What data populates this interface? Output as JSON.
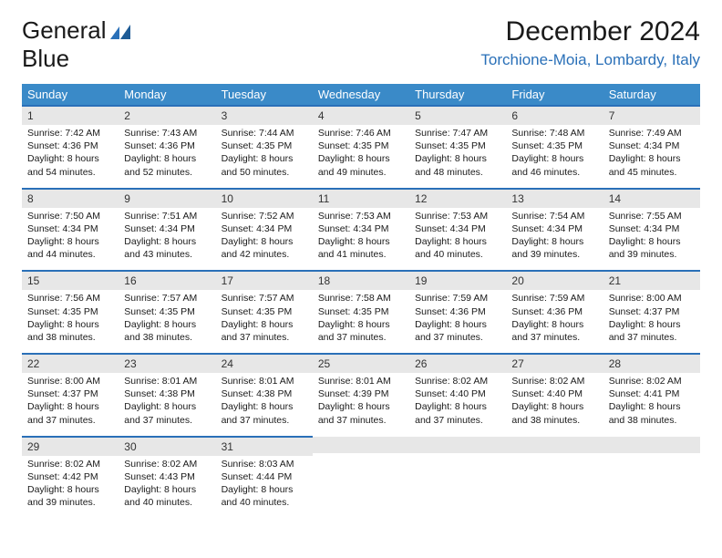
{
  "logo": {
    "text1": "General",
    "text2": "Blue"
  },
  "title": "December 2024",
  "location": "Torchione-Moia, Lombardy, Italy",
  "colors": {
    "header_bg": "#3a8ac8",
    "header_text": "#ffffff",
    "row_border": "#2a70b8",
    "daynum_bg": "#e7e7e7",
    "accent": "#2a70b8",
    "logo_gray": "#6b6b6b"
  },
  "day_headers": [
    "Sunday",
    "Monday",
    "Tuesday",
    "Wednesday",
    "Thursday",
    "Friday",
    "Saturday"
  ],
  "weeks": [
    [
      {
        "n": "1",
        "sunrise": "7:42 AM",
        "sunset": "4:36 PM",
        "daylight": "8 hours and 54 minutes."
      },
      {
        "n": "2",
        "sunrise": "7:43 AM",
        "sunset": "4:36 PM",
        "daylight": "8 hours and 52 minutes."
      },
      {
        "n": "3",
        "sunrise": "7:44 AM",
        "sunset": "4:35 PM",
        "daylight": "8 hours and 50 minutes."
      },
      {
        "n": "4",
        "sunrise": "7:46 AM",
        "sunset": "4:35 PM",
        "daylight": "8 hours and 49 minutes."
      },
      {
        "n": "5",
        "sunrise": "7:47 AM",
        "sunset": "4:35 PM",
        "daylight": "8 hours and 48 minutes."
      },
      {
        "n": "6",
        "sunrise": "7:48 AM",
        "sunset": "4:35 PM",
        "daylight": "8 hours and 46 minutes."
      },
      {
        "n": "7",
        "sunrise": "7:49 AM",
        "sunset": "4:34 PM",
        "daylight": "8 hours and 45 minutes."
      }
    ],
    [
      {
        "n": "8",
        "sunrise": "7:50 AM",
        "sunset": "4:34 PM",
        "daylight": "8 hours and 44 minutes."
      },
      {
        "n": "9",
        "sunrise": "7:51 AM",
        "sunset": "4:34 PM",
        "daylight": "8 hours and 43 minutes."
      },
      {
        "n": "10",
        "sunrise": "7:52 AM",
        "sunset": "4:34 PM",
        "daylight": "8 hours and 42 minutes."
      },
      {
        "n": "11",
        "sunrise": "7:53 AM",
        "sunset": "4:34 PM",
        "daylight": "8 hours and 41 minutes."
      },
      {
        "n": "12",
        "sunrise": "7:53 AM",
        "sunset": "4:34 PM",
        "daylight": "8 hours and 40 minutes."
      },
      {
        "n": "13",
        "sunrise": "7:54 AM",
        "sunset": "4:34 PM",
        "daylight": "8 hours and 39 minutes."
      },
      {
        "n": "14",
        "sunrise": "7:55 AM",
        "sunset": "4:34 PM",
        "daylight": "8 hours and 39 minutes."
      }
    ],
    [
      {
        "n": "15",
        "sunrise": "7:56 AM",
        "sunset": "4:35 PM",
        "daylight": "8 hours and 38 minutes."
      },
      {
        "n": "16",
        "sunrise": "7:57 AM",
        "sunset": "4:35 PM",
        "daylight": "8 hours and 38 minutes."
      },
      {
        "n": "17",
        "sunrise": "7:57 AM",
        "sunset": "4:35 PM",
        "daylight": "8 hours and 37 minutes."
      },
      {
        "n": "18",
        "sunrise": "7:58 AM",
        "sunset": "4:35 PM",
        "daylight": "8 hours and 37 minutes."
      },
      {
        "n": "19",
        "sunrise": "7:59 AM",
        "sunset": "4:36 PM",
        "daylight": "8 hours and 37 minutes."
      },
      {
        "n": "20",
        "sunrise": "7:59 AM",
        "sunset": "4:36 PM",
        "daylight": "8 hours and 37 minutes."
      },
      {
        "n": "21",
        "sunrise": "8:00 AM",
        "sunset": "4:37 PM",
        "daylight": "8 hours and 37 minutes."
      }
    ],
    [
      {
        "n": "22",
        "sunrise": "8:00 AM",
        "sunset": "4:37 PM",
        "daylight": "8 hours and 37 minutes."
      },
      {
        "n": "23",
        "sunrise": "8:01 AM",
        "sunset": "4:38 PM",
        "daylight": "8 hours and 37 minutes."
      },
      {
        "n": "24",
        "sunrise": "8:01 AM",
        "sunset": "4:38 PM",
        "daylight": "8 hours and 37 minutes."
      },
      {
        "n": "25",
        "sunrise": "8:01 AM",
        "sunset": "4:39 PM",
        "daylight": "8 hours and 37 minutes."
      },
      {
        "n": "26",
        "sunrise": "8:02 AM",
        "sunset": "4:40 PM",
        "daylight": "8 hours and 37 minutes."
      },
      {
        "n": "27",
        "sunrise": "8:02 AM",
        "sunset": "4:40 PM",
        "daylight": "8 hours and 38 minutes."
      },
      {
        "n": "28",
        "sunrise": "8:02 AM",
        "sunset": "4:41 PM",
        "daylight": "8 hours and 38 minutes."
      }
    ],
    [
      {
        "n": "29",
        "sunrise": "8:02 AM",
        "sunset": "4:42 PM",
        "daylight": "8 hours and 39 minutes."
      },
      {
        "n": "30",
        "sunrise": "8:02 AM",
        "sunset": "4:43 PM",
        "daylight": "8 hours and 40 minutes."
      },
      {
        "n": "31",
        "sunrise": "8:03 AM",
        "sunset": "4:44 PM",
        "daylight": "8 hours and 40 minutes."
      },
      null,
      null,
      null,
      null
    ]
  ],
  "labels": {
    "sunrise": "Sunrise: ",
    "sunset": "Sunset: ",
    "daylight": "Daylight: "
  }
}
